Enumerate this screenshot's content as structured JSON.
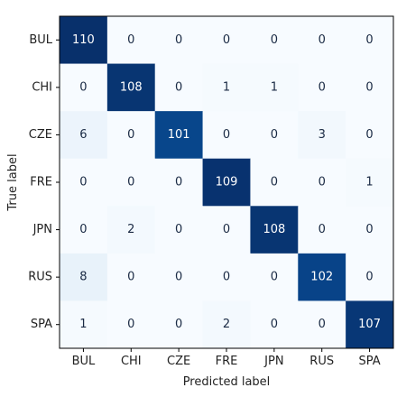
{
  "chart_data": {
    "type": "heatmap",
    "title": "",
    "xlabel": "Predicted label",
    "ylabel": "True label",
    "x_categories": [
      "BUL",
      "CHI",
      "CZE",
      "FRE",
      "JPN",
      "RUS",
      "SPA"
    ],
    "y_categories": [
      "BUL",
      "CHI",
      "CZE",
      "FRE",
      "JPN",
      "RUS",
      "SPA"
    ],
    "values": [
      [
        110,
        0,
        0,
        0,
        0,
        0,
        0
      ],
      [
        0,
        108,
        0,
        1,
        1,
        0,
        0
      ],
      [
        6,
        0,
        101,
        0,
        0,
        3,
        0
      ],
      [
        0,
        0,
        0,
        109,
        0,
        0,
        1
      ],
      [
        0,
        2,
        0,
        0,
        108,
        0,
        0
      ],
      [
        8,
        0,
        0,
        0,
        0,
        102,
        0
      ],
      [
        1,
        0,
        0,
        2,
        0,
        0,
        107
      ]
    ],
    "colormap": "Blues",
    "vmin": 0,
    "vmax": 110,
    "colorbar": false
  }
}
